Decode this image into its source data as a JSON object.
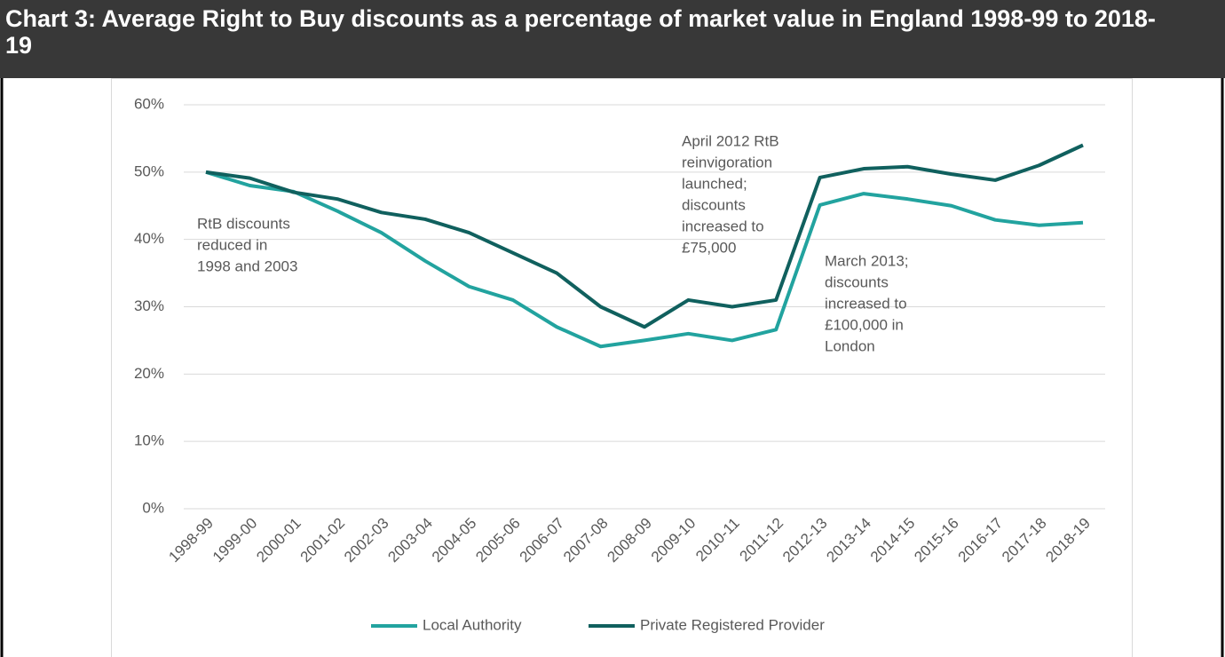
{
  "chart_data": {
    "type": "line",
    "title": "Chart 3: Average Right to Buy discounts as a percentage of market value in England 1998-99 to 2018-19",
    "categories": [
      "1998-99",
      "1999-00",
      "2000-01",
      "2001-02",
      "2002-03",
      "2003-04",
      "2004-05",
      "2005-06",
      "2006-07",
      "2007-08",
      "2008-09",
      "2009-10",
      "2010-11",
      "2011-12",
      "2012-13",
      "2013-14",
      "2014-15",
      "2015-16",
      "2016-17",
      "2017-18",
      "2018-19"
    ],
    "series": [
      {
        "name": "Local Authority",
        "color": "#22a39f",
        "values": [
          50,
          48,
          47.1,
          44.2,
          41,
          36.8,
          33,
          31,
          27,
          24.1,
          25,
          26,
          25,
          26.6,
          45.1,
          46.8,
          46,
          45,
          42.9,
          42.1,
          42.5
        ]
      },
      {
        "name": "Private Registered Provider",
        "color": "#10605e",
        "values": [
          50,
          49.1,
          47,
          46,
          44,
          43,
          41,
          38,
          35,
          30,
          27,
          31,
          30,
          31,
          49.2,
          50.5,
          50.8,
          49.7,
          48.8,
          51,
          54
        ]
      }
    ],
    "ylim": [
      0,
      60
    ],
    "yticks": [
      {
        "value": 0,
        "label": "0%"
      },
      {
        "value": 10,
        "label": "10%"
      },
      {
        "value": 20,
        "label": "20%"
      },
      {
        "value": 30,
        "label": "30%"
      },
      {
        "value": 40,
        "label": "40%"
      },
      {
        "value": 50,
        "label": "50%"
      },
      {
        "value": 60,
        "label": "60%"
      }
    ],
    "grid": true,
    "legend": "bottom",
    "annotations": [
      {
        "lines": [
          "RtB discounts",
          "reduced in",
          "1998 and 2003"
        ]
      },
      {
        "lines": [
          "April 2012 RtB",
          "reinvigoration",
          "launched;",
          "discounts",
          "increased to",
          "£75,000"
        ]
      },
      {
        "lines": [
          "March 2013;",
          "discounts",
          "increased to",
          "£100,000 in",
          "London"
        ]
      }
    ]
  }
}
